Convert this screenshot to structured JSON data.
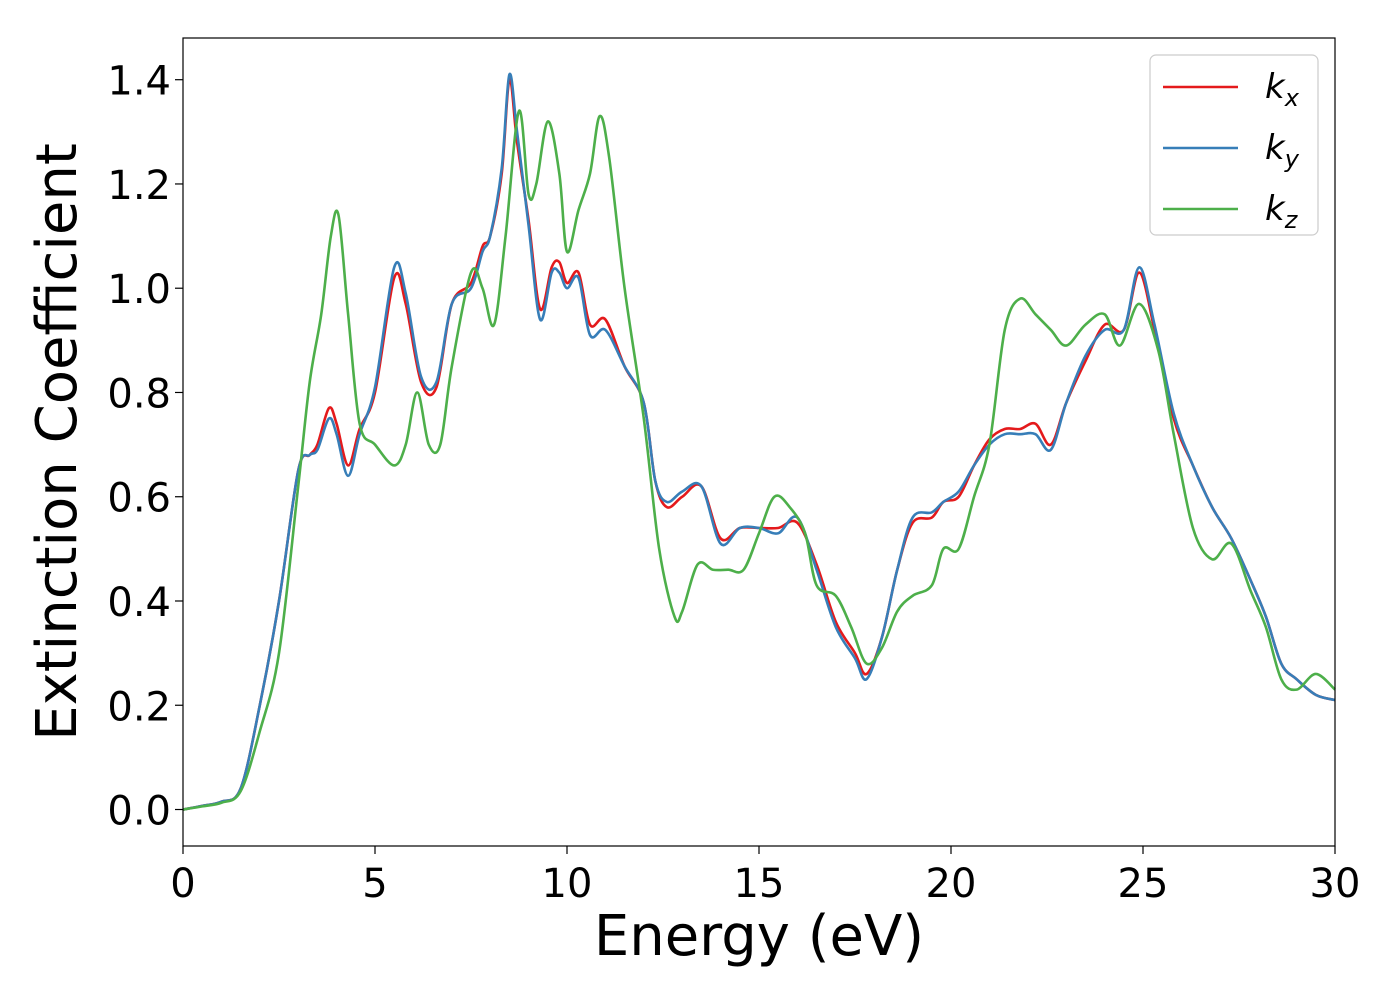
{
  "chart_data": {
    "type": "line",
    "title": "",
    "xlabel": "Energy (eV)",
    "ylabel": "Extinction Coefficient",
    "xlim": [
      0,
      30
    ],
    "ylim": [
      -0.07,
      1.48
    ],
    "xticks": [
      0,
      5,
      10,
      15,
      20,
      25,
      30
    ],
    "xtick_labels": [
      "0",
      "5",
      "10",
      "15",
      "20",
      "25",
      "30"
    ],
    "yticks": [
      0.0,
      0.2,
      0.4,
      0.6,
      0.8,
      1.0,
      1.2,
      1.4
    ],
    "ytick_labels": [
      "0.0",
      "0.2",
      "0.4",
      "0.6",
      "0.8",
      "1.0",
      "1.2",
      "1.4"
    ],
    "grid": false,
    "legend_position": "top-right",
    "series": [
      {
        "name": "k_x",
        "label_base": "k",
        "label_sub": "x",
        "color": "#e41a1c",
        "x": [
          0,
          0.5,
          1.0,
          1.5,
          2.0,
          2.5,
          3.0,
          3.3,
          3.5,
          3.8,
          4.0,
          4.3,
          4.6,
          5.0,
          5.5,
          5.8,
          6.2,
          6.6,
          7.0,
          7.5,
          7.8,
          8.0,
          8.3,
          8.5,
          8.7,
          9.0,
          9.3,
          9.6,
          9.8,
          10.0,
          10.3,
          10.6,
          11.0,
          11.5,
          12.0,
          12.3,
          12.6,
          13.0,
          13.5,
          14.0,
          14.5,
          15.0,
          15.5,
          16.0,
          16.5,
          17.0,
          17.5,
          17.8,
          18.2,
          18.6,
          19.0,
          19.5,
          19.8,
          20.2,
          20.6,
          21.0,
          21.4,
          21.8,
          22.2,
          22.6,
          23.0,
          23.5,
          24.0,
          24.5,
          24.9,
          25.3,
          25.8,
          26.3,
          26.8,
          27.3,
          27.8,
          28.2,
          28.6,
          29.0,
          29.5,
          30.0
        ],
        "y": [
          0.0,
          0.007,
          0.015,
          0.04,
          0.2,
          0.4,
          0.65,
          0.68,
          0.7,
          0.77,
          0.74,
          0.66,
          0.73,
          0.8,
          1.02,
          0.97,
          0.82,
          0.81,
          0.97,
          1.01,
          1.08,
          1.1,
          1.22,
          1.4,
          1.28,
          1.13,
          0.96,
          1.04,
          1.05,
          1.01,
          1.03,
          0.93,
          0.94,
          0.85,
          0.78,
          0.63,
          0.58,
          0.6,
          0.62,
          0.52,
          0.54,
          0.54,
          0.54,
          0.55,
          0.47,
          0.36,
          0.3,
          0.26,
          0.33,
          0.46,
          0.55,
          0.56,
          0.59,
          0.6,
          0.66,
          0.71,
          0.73,
          0.73,
          0.74,
          0.7,
          0.78,
          0.86,
          0.93,
          0.92,
          1.03,
          0.92,
          0.75,
          0.66,
          0.58,
          0.52,
          0.44,
          0.37,
          0.28,
          0.25,
          0.22,
          0.21
        ]
      },
      {
        "name": "k_y",
        "label_base": "k",
        "label_sub": "y",
        "color": "#377eb8",
        "x": [
          0,
          0.5,
          1.0,
          1.5,
          2.0,
          2.5,
          3.0,
          3.3,
          3.5,
          3.8,
          4.0,
          4.3,
          4.6,
          5.0,
          5.5,
          5.8,
          6.2,
          6.6,
          7.0,
          7.5,
          7.8,
          8.0,
          8.3,
          8.5,
          8.7,
          9.0,
          9.3,
          9.6,
          9.8,
          10.0,
          10.3,
          10.6,
          11.0,
          11.5,
          12.0,
          12.3,
          12.6,
          13.0,
          13.5,
          14.0,
          14.5,
          15.0,
          15.5,
          16.0,
          16.5,
          17.0,
          17.5,
          17.8,
          18.2,
          18.6,
          19.0,
          19.5,
          19.8,
          20.2,
          20.6,
          21.0,
          21.4,
          21.8,
          22.2,
          22.6,
          23.0,
          23.5,
          24.0,
          24.5,
          24.9,
          25.3,
          25.8,
          26.3,
          26.8,
          27.3,
          27.8,
          28.2,
          28.6,
          29.0,
          29.5,
          30.0
        ],
        "y": [
          0.0,
          0.007,
          0.015,
          0.04,
          0.2,
          0.4,
          0.65,
          0.68,
          0.69,
          0.75,
          0.72,
          0.64,
          0.72,
          0.81,
          1.04,
          0.99,
          0.83,
          0.82,
          0.97,
          1.0,
          1.07,
          1.1,
          1.23,
          1.41,
          1.3,
          1.12,
          0.94,
          1.03,
          1.03,
          1.0,
          1.02,
          0.91,
          0.92,
          0.85,
          0.78,
          0.63,
          0.59,
          0.61,
          0.62,
          0.51,
          0.54,
          0.54,
          0.53,
          0.56,
          0.46,
          0.35,
          0.29,
          0.25,
          0.33,
          0.46,
          0.56,
          0.57,
          0.59,
          0.61,
          0.66,
          0.7,
          0.72,
          0.72,
          0.72,
          0.69,
          0.78,
          0.87,
          0.92,
          0.92,
          1.04,
          0.93,
          0.76,
          0.66,
          0.58,
          0.52,
          0.44,
          0.37,
          0.28,
          0.25,
          0.22,
          0.21
        ]
      },
      {
        "name": "k_z",
        "label_base": "k",
        "label_sub": "z",
        "color": "#4daf4a",
        "x": [
          0,
          0.5,
          1.0,
          1.5,
          2.0,
          2.5,
          3.0,
          3.3,
          3.6,
          3.85,
          4.05,
          4.3,
          4.6,
          5.0,
          5.5,
          5.8,
          6.1,
          6.4,
          6.7,
          7.0,
          7.5,
          7.8,
          8.1,
          8.4,
          8.75,
          9.0,
          9.2,
          9.5,
          9.8,
          10.0,
          10.3,
          10.6,
          10.85,
          11.1,
          11.5,
          12.0,
          12.4,
          12.8,
          13.0,
          13.4,
          13.8,
          14.2,
          14.6,
          15.0,
          15.4,
          15.8,
          16.2,
          16.5,
          17.0,
          17.4,
          17.8,
          18.2,
          18.6,
          19.0,
          19.5,
          19.8,
          20.2,
          20.6,
          21.0,
          21.4,
          21.8,
          22.2,
          22.6,
          23.0,
          23.5,
          24.0,
          24.4,
          24.9,
          25.4,
          25.8,
          26.3,
          26.8,
          27.3,
          27.8,
          28.2,
          28.6,
          29.0,
          29.5,
          30.0
        ],
        "y": [
          0.0,
          0.006,
          0.013,
          0.035,
          0.15,
          0.3,
          0.62,
          0.82,
          0.95,
          1.1,
          1.14,
          0.95,
          0.74,
          0.7,
          0.66,
          0.7,
          0.8,
          0.7,
          0.7,
          0.85,
          1.03,
          1.0,
          0.93,
          1.1,
          1.34,
          1.18,
          1.2,
          1.32,
          1.22,
          1.07,
          1.15,
          1.22,
          1.33,
          1.25,
          1.0,
          0.75,
          0.5,
          0.37,
          0.38,
          0.47,
          0.46,
          0.46,
          0.46,
          0.53,
          0.6,
          0.58,
          0.53,
          0.43,
          0.41,
          0.35,
          0.28,
          0.31,
          0.38,
          0.41,
          0.43,
          0.5,
          0.5,
          0.6,
          0.7,
          0.92,
          0.98,
          0.95,
          0.92,
          0.89,
          0.93,
          0.95,
          0.89,
          0.97,
          0.88,
          0.72,
          0.54,
          0.48,
          0.51,
          0.42,
          0.35,
          0.25,
          0.23,
          0.26,
          0.23
        ]
      }
    ]
  }
}
